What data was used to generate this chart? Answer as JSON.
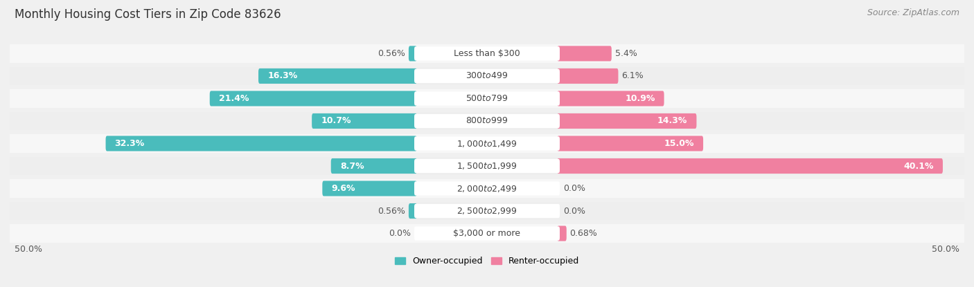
{
  "title": "Monthly Housing Cost Tiers in Zip Code 83626",
  "source": "Source: ZipAtlas.com",
  "categories": [
    "Less than $300",
    "$300 to $499",
    "$500 to $799",
    "$800 to $999",
    "$1,000 to $1,499",
    "$1,500 to $1,999",
    "$2,000 to $2,499",
    "$2,500 to $2,999",
    "$3,000 or more"
  ],
  "owner_values": [
    0.56,
    16.3,
    21.4,
    10.7,
    32.3,
    8.7,
    9.6,
    0.56,
    0.0
  ],
  "renter_values": [
    5.4,
    6.1,
    10.9,
    14.3,
    15.0,
    40.1,
    0.0,
    0.0,
    0.68
  ],
  "owner_color": "#4abcbc",
  "renter_color": "#f080a0",
  "owner_label": "Owner-occupied",
  "renter_label": "Renter-occupied",
  "axis_max": 50.0,
  "x_left_label": "50.0%",
  "x_right_label": "50.0%",
  "bg_color": "#f0f0f0",
  "row_bg_color": "#fafafa",
  "row_alt_color": "#ebebeb",
  "title_fontsize": 12,
  "source_fontsize": 9,
  "bar_label_fontsize": 9,
  "category_fontsize": 9,
  "label_inside_threshold": 8.0
}
